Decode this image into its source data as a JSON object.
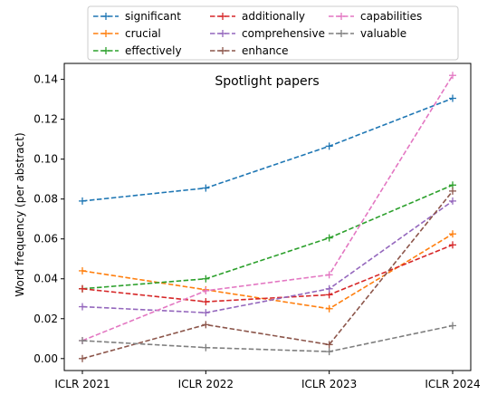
{
  "chart_data": {
    "type": "line",
    "title": "Spotlight papers",
    "xlabel": "",
    "ylabel": "Word frequency (per abstract)",
    "categories": [
      "ICLR 2021",
      "ICLR 2022",
      "ICLR 2023",
      "ICLR 2024"
    ],
    "ylim": [
      -0.006,
      0.148
    ],
    "yticks": [
      0.0,
      0.02,
      0.04,
      0.06,
      0.08,
      0.1,
      0.12,
      0.14
    ],
    "ytick_labels": [
      "0.00",
      "0.02",
      "0.04",
      "0.06",
      "0.08",
      "0.10",
      "0.12",
      "0.14"
    ],
    "grid": false,
    "legend_position": "top, outside plot, 3 columns",
    "series": [
      {
        "name": "significant",
        "color": "#1f77b4",
        "values": [
          0.079,
          0.0855,
          0.1065,
          0.1305
        ]
      },
      {
        "name": "crucial",
        "color": "#ff7f0e",
        "values": [
          0.044,
          0.0345,
          0.025,
          0.0625
        ]
      },
      {
        "name": "effectively",
        "color": "#2ca02c",
        "values": [
          0.035,
          0.04,
          0.0605,
          0.087
        ]
      },
      {
        "name": "additionally",
        "color": "#d62728",
        "values": [
          0.035,
          0.0285,
          0.032,
          0.057
        ]
      },
      {
        "name": "comprehensive",
        "color": "#9467bd",
        "values": [
          0.026,
          0.023,
          0.035,
          0.079
        ]
      },
      {
        "name": "enhance",
        "color": "#8c564b",
        "values": [
          0.0,
          0.017,
          0.007,
          0.084
        ]
      },
      {
        "name": "capabilities",
        "color": "#e377c2",
        "values": [
          0.009,
          0.034,
          0.042,
          0.142
        ]
      },
      {
        "name": "valuable",
        "color": "#7f7f7f",
        "values": [
          0.009,
          0.0055,
          0.0035,
          0.0165
        ]
      }
    ]
  }
}
